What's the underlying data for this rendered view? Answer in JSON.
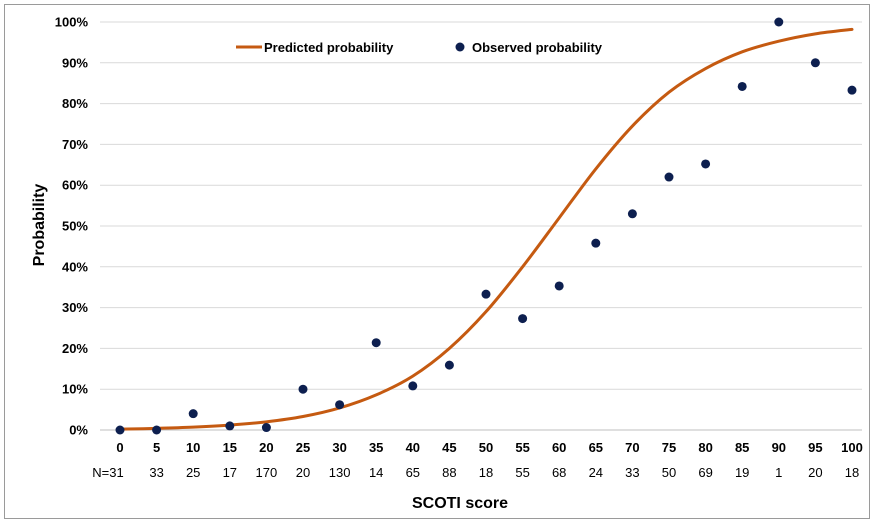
{
  "chart_data": {
    "type": "line",
    "xlabel": "SCOTI score",
    "ylabel": "Probability",
    "ylim": [
      0,
      100
    ],
    "y_ticks": [
      "0%",
      "10%",
      "20%",
      "30%",
      "40%",
      "50%",
      "60%",
      "70%",
      "80%",
      "90%",
      "100%"
    ],
    "x_ticks": [
      0,
      5,
      10,
      15,
      20,
      25,
      30,
      35,
      40,
      45,
      50,
      55,
      60,
      65,
      70,
      75,
      80,
      85,
      90,
      95,
      100
    ],
    "n_labels": [
      "N=31",
      "33",
      "25",
      "17",
      "170",
      "20",
      "130",
      "14",
      "65",
      "88",
      "18",
      "55",
      "68",
      "24",
      "33",
      "50",
      "69",
      "19",
      "1",
      "20",
      "18"
    ],
    "grid": "horizontal",
    "legend_position": "top",
    "series": [
      {
        "name": "Predicted probability",
        "style": "line",
        "color": "#c55a11",
        "x": [
          0,
          5,
          10,
          15,
          20,
          25,
          30,
          35,
          40,
          45,
          50,
          55,
          60,
          65,
          70,
          75,
          80,
          85,
          90,
          95,
          100
        ],
        "y": [
          0.2,
          0.4,
          0.7,
          1.2,
          2.0,
          3.3,
          5.4,
          8.6,
          13.2,
          20.0,
          29.0,
          40.0,
          52.0,
          64.0,
          74.5,
          82.8,
          88.6,
          92.7,
          95.3,
          97.1,
          98.2
        ]
      },
      {
        "name": "Observed probability",
        "style": "markers",
        "color": "#0d1f4f",
        "x": [
          0,
          5,
          10,
          15,
          20,
          25,
          30,
          35,
          40,
          45,
          50,
          55,
          60,
          65,
          70,
          75,
          80,
          85,
          90,
          95,
          100
        ],
        "y": [
          0,
          0,
          4.0,
          1.0,
          0.6,
          10.0,
          6.2,
          21.4,
          10.8,
          15.9,
          33.3,
          27.3,
          35.3,
          45.8,
          53.0,
          62.0,
          65.2,
          84.2,
          100,
          90.0,
          83.3
        ]
      }
    ]
  }
}
